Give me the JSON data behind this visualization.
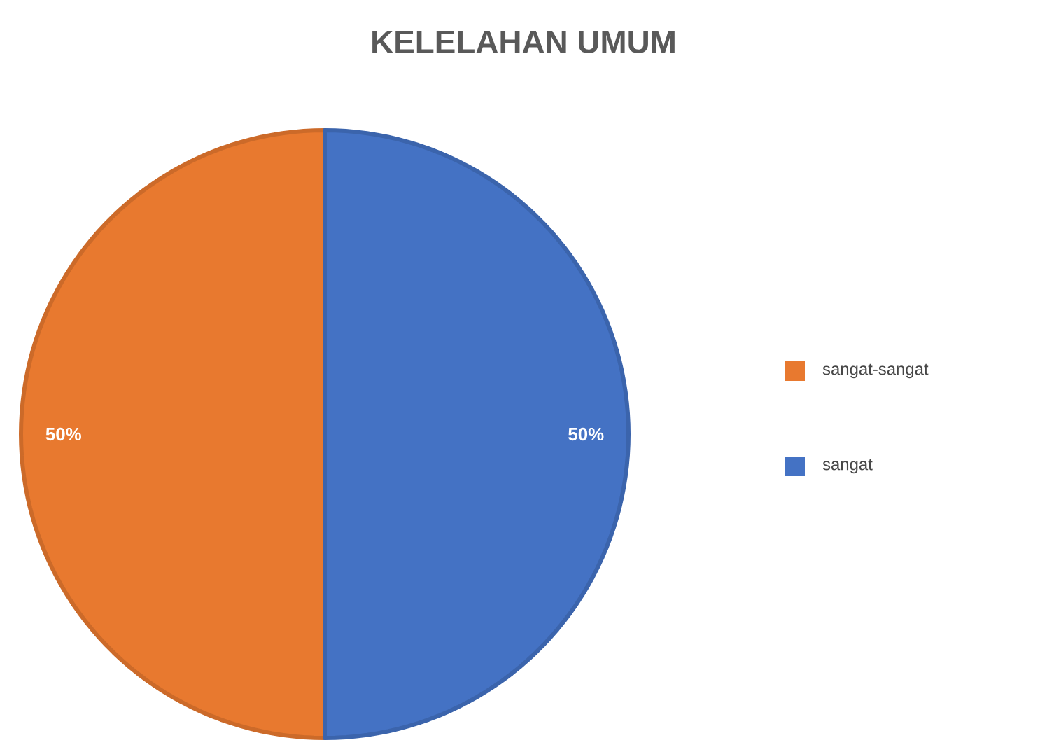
{
  "chart_data": {
    "type": "pie",
    "title": "KELELAHAN UMUM",
    "categories": [
      "sangat-sangat",
      "sangat"
    ],
    "values": [
      50,
      50
    ],
    "colors": [
      "#e8792f",
      "#4472c4"
    ],
    "value_labels": [
      "50%",
      "50%"
    ],
    "legend": "right"
  }
}
